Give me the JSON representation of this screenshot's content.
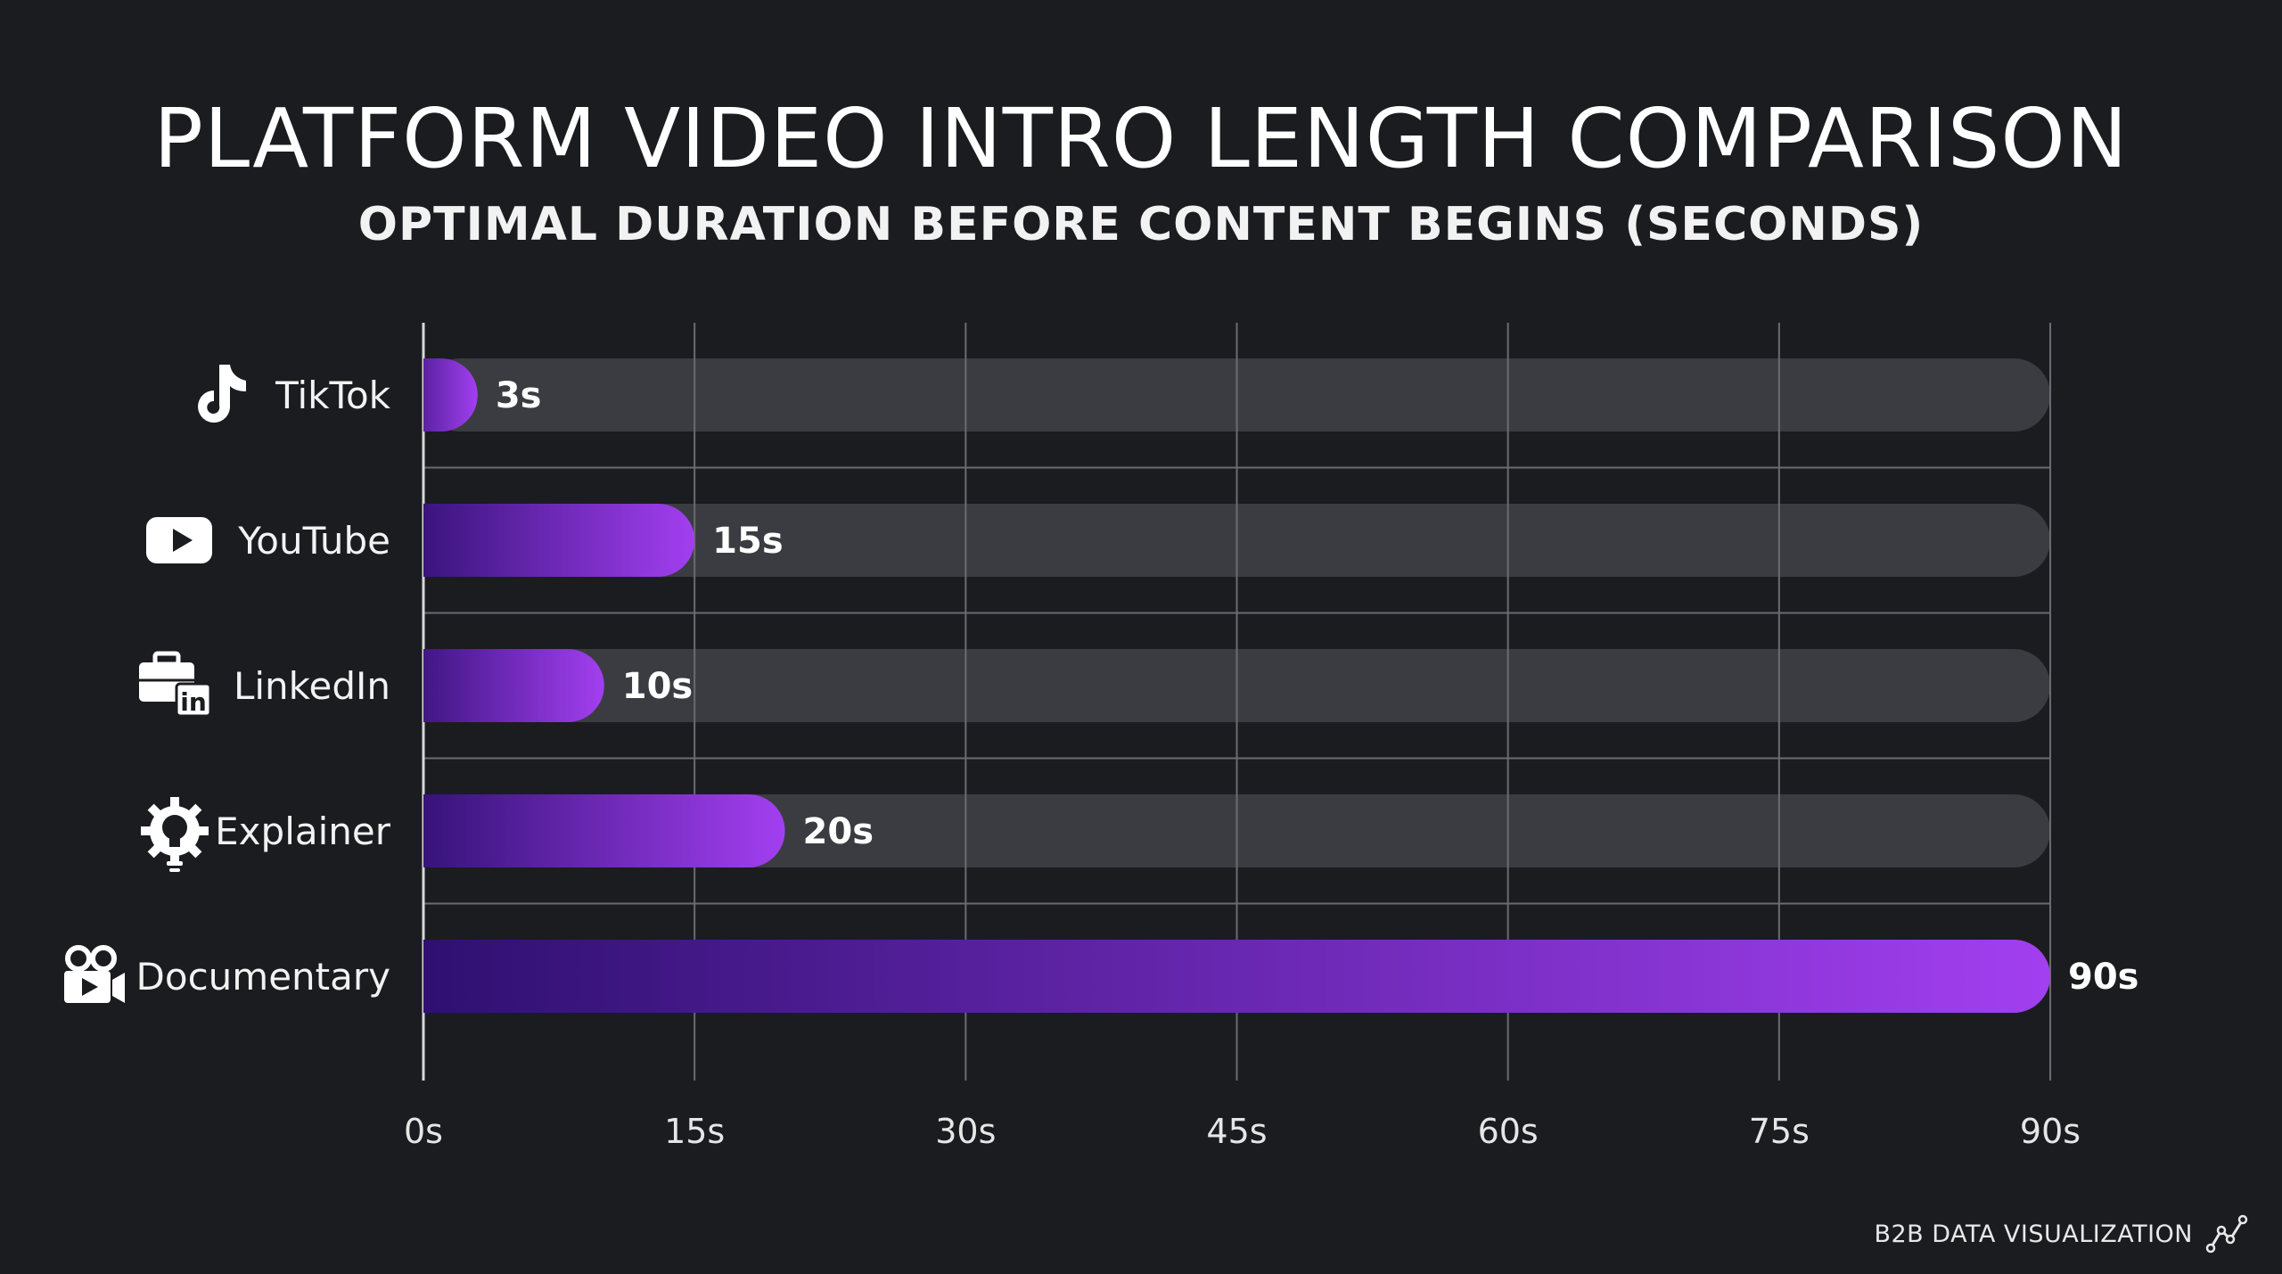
{
  "title": "PLATFORM VIDEO INTRO LENGTH COMPARISON",
  "subtitle": "OPTIMAL DURATION BEFORE CONTENT BEGINS (SECONDS)",
  "footer": {
    "text": "B2B DATA VISUALIZATION",
    "icon": "line-chart-icon"
  },
  "colors": {
    "background": "#1b1c20",
    "track": "#3b3c41",
    "bar_start": "#2c0f6e",
    "bar_end": "#a23ff0",
    "grid": "#6a6b70"
  },
  "chart_data": {
    "type": "bar",
    "orientation": "horizontal",
    "categories": [
      "TikTok",
      "YouTube",
      "LinkedIn",
      "Explainer",
      "Documentary"
    ],
    "icons": [
      "tiktok-icon",
      "youtube-icon",
      "linkedin-briefcase-icon",
      "lightbulb-gear-icon",
      "video-camera-icon"
    ],
    "values": [
      3,
      15,
      10,
      20,
      90
    ],
    "data_labels": [
      "3s",
      "15s",
      "10s",
      "20s",
      "90s"
    ],
    "xlim": [
      0,
      90
    ],
    "xticks": [
      0,
      15,
      30,
      45,
      60,
      75,
      90
    ],
    "xtick_labels": [
      "0s",
      "15s",
      "30s",
      "45s",
      "60s",
      "75s",
      "90s"
    ],
    "grid": true,
    "legend": "none"
  }
}
